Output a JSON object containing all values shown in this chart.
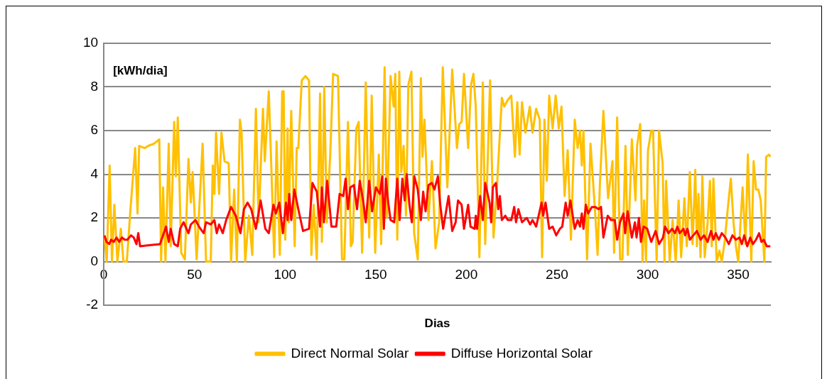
{
  "chart_data": {
    "type": "line",
    "xlabel": "Dias",
    "annotations": [
      "[kWh/dia]"
    ],
    "xlim": [
      0,
      368
    ],
    "xticks": [
      0,
      50,
      100,
      150,
      200,
      250,
      300,
      350
    ],
    "ylim": [
      -2,
      10
    ],
    "yticks": [
      -2,
      0,
      2,
      4,
      6,
      8,
      10
    ],
    "grid": "y",
    "legend": "bottom",
    "marker": "none",
    "line_style": "solid",
    "series": [
      {
        "name": "Direct Normal Solar",
        "color": "#ffc000",
        "x": [
          0.3,
          1.6,
          3.2,
          4.5,
          5.8,
          7.5,
          9.4,
          10.8,
          12.7,
          14.7,
          17.3,
          18.6,
          19.5,
          22.5,
          24.5,
          27.7,
          30.6,
          31.6,
          32.7,
          34,
          35.8,
          36.9,
          38.8,
          39.7,
          40.8,
          42.7,
          44.7,
          46.7,
          48,
          49,
          51.2,
          54.5,
          56.4,
          59,
          60.1,
          61,
          61.9,
          63.6,
          64.9,
          66.6,
          68.9,
          70.2,
          71.9,
          73.4,
          75.1,
          76,
          78,
          80,
          81.9,
          83.9,
          85.4,
          87.8,
          88.8,
          91,
          92.3,
          94,
          95.3,
          97.1,
          98.4,
          99.2,
          100.1,
          101.4,
          102,
          103.4,
          105.3,
          106.4,
          107.3,
          109.2,
          111.2,
          113.2,
          114.5,
          115.8,
          117.5,
          119.3,
          120.3,
          121.6,
          123,
          124.9,
          126.5,
          129.2,
          131.4,
          132.7,
          134.7,
          136.3,
          137.3,
          139.3,
          140.6,
          142.5,
          144.5,
          146.4,
          147.8,
          149.7,
          151.7,
          153,
          154.9,
          156.2,
          158.2,
          159.9,
          160.8,
          161.9,
          163,
          164.1,
          165.4,
          166.7,
          168,
          169.7,
          171.2,
          173.2,
          174.9,
          175.8,
          176.9,
          179.1,
          181,
          183,
          185,
          187,
          189.5,
          192.2,
          194.8,
          196.1,
          197.4,
          198.7,
          201,
          202.6,
          203.9,
          205.2,
          207.2,
          209.1,
          210.4,
          213.1,
          215,
          217,
          219.6,
          220.9,
          222.8,
          224.8,
          226.8,
          228.1,
          229.4,
          230.7,
          232.6,
          235,
          236.5,
          238.5,
          240.5,
          241.8,
          243.1,
          244.4,
          245.7,
          247.6,
          249.3,
          251,
          252.5,
          254.2,
          255.9,
          257.7,
          259.8,
          261.4,
          262.7,
          263.7,
          264.6,
          266.6,
          268.5,
          271.1,
          272.4,
          273.7,
          275.6,
          278.2,
          280.6,
          281.5,
          283.2,
          284.8,
          286.1,
          287.8,
          289.1,
          291.3,
          293.3,
          294.2,
          295.9,
          297.2,
          298.1,
          299.1,
          300.2,
          302,
          303,
          305,
          306.3,
          308.3,
          309.3,
          310.2,
          312.2,
          313.8,
          315.5,
          317.1,
          318.5,
          320.3,
          321.6,
          323.3,
          324.8,
          326.3,
          327.2,
          328.1,
          329.2,
          330.2,
          331.5,
          333.1,
          334.4,
          335.4,
          336.3,
          338.1,
          339.6,
          340.9,
          342.5,
          344.2,
          345.9,
          347.4,
          348.7,
          350,
          352.4,
          354,
          355.3,
          357.2,
          358.5,
          359.8,
          361.1,
          362.4,
          364.4,
          365.4,
          367,
          367.7
        ],
        "values": [
          1.2,
          0,
          4.4,
          0,
          2.6,
          0,
          1.5,
          0,
          0,
          2.4,
          5.2,
          2.2,
          5.3,
          5.2,
          5.3,
          5.4,
          5.6,
          0,
          3.4,
          0,
          5.4,
          0.7,
          6.4,
          3.9,
          6.6,
          0.4,
          0.1,
          4.7,
          2.7,
          4.1,
          0.1,
          5.4,
          0,
          0,
          4.4,
          3.1,
          5.9,
          3.1,
          5.9,
          4.6,
          4.5,
          0,
          3.3,
          0,
          6.5,
          5.9,
          0,
          2.1,
          0.3,
          7,
          1.8,
          7,
          4.6,
          7.8,
          4.6,
          0.2,
          5.5,
          0.3,
          7.8,
          7.8,
          1,
          6.1,
          1.8,
          6.9,
          0.7,
          5.2,
          5.2,
          8.3,
          8.5,
          8.3,
          0.3,
          2.6,
          0.1,
          7.7,
          0.9,
          8,
          1.8,
          4.9,
          8.6,
          8.5,
          0.1,
          0.1,
          6.4,
          0.7,
          0.9,
          6.1,
          6.4,
          0.4,
          8.2,
          1.1,
          7.6,
          0.4,
          4.9,
          0.8,
          8.9,
          2,
          8.5,
          7.1,
          8.6,
          1,
          8.7,
          4.1,
          5.3,
          2.1,
          8.1,
          8.7,
          1.3,
          0.1,
          8.4,
          4.8,
          6.5,
          1.9,
          4.6,
          0.6,
          1.8,
          8.9,
          3.4,
          8.8,
          5.2,
          6.3,
          6.4,
          8.6,
          5.2,
          8.1,
          8.6,
          7.1,
          0.2,
          8.2,
          0.8,
          8.3,
          1.1,
          3.6,
          7.5,
          7.1,
          7.4,
          7.6,
          4.8,
          7.3,
          4.9,
          7.3,
          5.9,
          7.1,
          5.9,
          7,
          6.5,
          0.2,
          6.5,
          3.7,
          7.6,
          6.1,
          7.6,
          6.1,
          7.1,
          3,
          5.1,
          1,
          6.5,
          5.2,
          6,
          4.4,
          6,
          0.1,
          5.4,
          2.2,
          0.3,
          3.6,
          6.9,
          2.9,
          4.6,
          0.4,
          6.6,
          0.1,
          0.1,
          5.3,
          0.3,
          5.6,
          2.8,
          5.3,
          6.3,
          0,
          2.8,
          0,
          5.1,
          6,
          6,
          0,
          6,
          4.5,
          0,
          3.7,
          0,
          1.9,
          0,
          2.8,
          0.2,
          2.9,
          0.7,
          4.1,
          0.8,
          4.2,
          0.7,
          3.1,
          0.2,
          3.9,
          0.2,
          1.8,
          3.7,
          0.7,
          3.8,
          0,
          0.5,
          0,
          0.9,
          2.4,
          3.8,
          1.8,
          0.7,
          0,
          3.4,
          0.8,
          4.9,
          0,
          4.6,
          3.3,
          3.3,
          2.8,
          0,
          4.8,
          4.9,
          4.8
        ]
      },
      {
        "name": "Diffuse Horizontal Solar",
        "color": "#ff0000",
        "x": [
          0.3,
          1.5,
          3,
          4,
          5.5,
          7,
          8.5,
          10,
          11.5,
          13,
          15,
          16.5,
          18,
          19,
          20,
          25,
          31,
          34.3,
          35.8,
          36.9,
          38.8,
          40.8,
          42.1,
          44,
          46.7,
          48,
          50.6,
          52.5,
          55.1,
          56.4,
          59,
          61,
          62.3,
          63.6,
          65.6,
          67.5,
          70.2,
          72.8,
          75.4,
          77.3,
          79.3,
          81.3,
          83.9,
          86.5,
          89.1,
          91,
          93.6,
          94.9,
          96.8,
          98.8,
          100.5,
          101.4,
          102.3,
          103.4,
          105.1,
          107.3,
          109.9,
          113.2,
          115.1,
          117.5,
          119.3,
          120.3,
          121.4,
          123.2,
          125.6,
          128.2,
          130.1,
          132.1,
          133.4,
          134.7,
          136,
          138,
          139.7,
          141.2,
          143.2,
          144.5,
          146.4,
          148,
          150.1,
          152.3,
          153.6,
          154.5,
          155.6,
          156.9,
          158.2,
          160.2,
          161.9,
          163.2,
          164.7,
          166,
          167.1,
          168.6,
          169.9,
          171.3,
          173.2,
          174.9,
          176.2,
          177.5,
          179.1,
          181,
          182.4,
          184.3,
          185.6,
          187.2,
          190.2,
          192.2,
          194.1,
          195.4,
          197.4,
          198.7,
          201,
          202.3,
          204.6,
          205.2,
          205.9,
          207.6,
          209.1,
          210.4,
          212.8,
          213.7,
          214.6,
          216.3,
          217.6,
          218.5,
          219.6,
          221.5,
          222.8,
          224.8,
          226.4,
          227.4,
          228.7,
          230.7,
          233.3,
          235.2,
          236.5,
          238.5,
          241.5,
          242.4,
          243.7,
          245.7,
          247.6,
          249.6,
          251.6,
          252.9,
          254.8,
          255.9,
          257.4,
          259.8,
          261.4,
          262.7,
          263.7,
          264.6,
          265.9,
          267.2,
          269.2,
          271.1,
          273,
          274.3,
          275.6,
          278,
          279.8,
          281.9,
          283.2,
          284.8,
          286.7,
          287.6,
          289,
          291.3,
          293,
          293.9,
          295.2,
          296.3,
          297.8,
          299.8,
          302,
          304.4,
          306.3,
          308.5,
          309.6,
          311.5,
          313.5,
          315.1,
          316.4,
          317.7,
          319.8,
          320.7,
          322,
          323.3,
          325.2,
          327.2,
          329.2,
          331.1,
          333.1,
          335,
          336.3,
          337.6,
          339.3,
          340.9,
          342.9,
          344.8,
          346.8,
          348.7,
          350.7,
          352,
          353.3,
          355,
          356.6,
          358.1,
          359.8,
          361.5,
          362.8,
          364.1,
          365.7,
          367.7
        ],
        "values": [
          1.2,
          0.9,
          0.8,
          1,
          0.9,
          1.1,
          0.9,
          1.1,
          1,
          1,
          1.2,
          1.1,
          0.8,
          1.3,
          0.7,
          0.75,
          0.8,
          1.6,
          0.9,
          1.5,
          0.8,
          0.7,
          1.5,
          1.8,
          1.3,
          1.7,
          1.9,
          1.6,
          1.3,
          1.8,
          1.7,
          1.9,
          1.3,
          1.7,
          1.3,
          1.9,
          2.5,
          2.1,
          1.3,
          2.4,
          2.7,
          2.4,
          1.5,
          2.8,
          1.5,
          1.3,
          2.6,
          2.2,
          2.7,
          1.3,
          2.7,
          1.9,
          3.1,
          1.9,
          3.3,
          2.4,
          1.4,
          1.5,
          3.6,
          3.2,
          1.6,
          3.4,
          1.8,
          3.7,
          1.6,
          1.6,
          3.1,
          3,
          3.8,
          2.4,
          3.4,
          3.5,
          2.4,
          3.7,
          2.7,
          1.8,
          3.7,
          2.3,
          3.4,
          3.1,
          3.9,
          1.5,
          3.8,
          2.7,
          1.9,
          1.8,
          3.8,
          1.9,
          3.8,
          2.8,
          4,
          2.6,
          1.8,
          3.9,
          3.3,
          1.9,
          3.2,
          2.3,
          3.5,
          3.6,
          3.3,
          3.9,
          2.6,
          1.5,
          3,
          1.4,
          1.8,
          2.8,
          2.6,
          1.5,
          2.6,
          1.6,
          1.5,
          2.1,
          1.5,
          3,
          1.9,
          3.6,
          2.7,
          1.8,
          3.4,
          3.6,
          2.4,
          3,
          1.9,
          2.1,
          1.9,
          1.9,
          2.5,
          1.8,
          2.4,
          1.8,
          2,
          1.7,
          1.9,
          1.6,
          2.7,
          2.1,
          2.7,
          1.5,
          1.6,
          1.2,
          1.5,
          1.6,
          2.7,
          2.1,
          2.8,
          1.5,
          1.9,
          1.6,
          2.2,
          1.5,
          2.6,
          2.2,
          2.5,
          2.5,
          2.4,
          2.5,
          1.1,
          2.1,
          1.9,
          1.9,
          1,
          1.8,
          2.2,
          1.3,
          2.3,
          1.1,
          1.8,
          1.1,
          2,
          0.9,
          1.6,
          1.5,
          0.9,
          1.4,
          0.8,
          1.1,
          1.6,
          1.3,
          1.5,
          1.3,
          1.6,
          1.3,
          1.5,
          1.2,
          1.5,
          1,
          1.2,
          1.4,
          1,
          1.2,
          0.9,
          1.4,
          1,
          1.3,
          1,
          1.3,
          1.1,
          0.8,
          1.2,
          1,
          1.1,
          0.8,
          1.2,
          0.7,
          1.1,
          0.8,
          1,
          1.3,
          0.9,
          1,
          0.7,
          0.7
        ]
      }
    ]
  }
}
